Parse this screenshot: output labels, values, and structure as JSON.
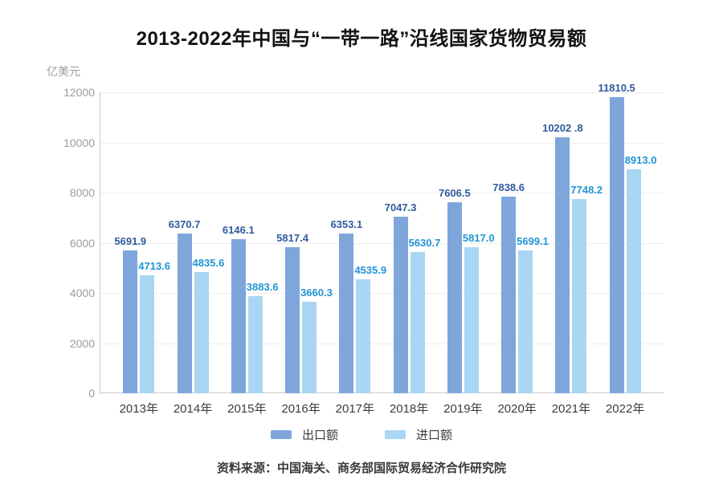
{
  "title": "2013-2022年中国与“一带一路”沿线国家货物贸易额",
  "y_unit": "亿美元",
  "source": "资料来源：中国海关、商务部国际贸易经济合作研究院",
  "colors": {
    "export_bar": "#7ea6db",
    "import_bar": "#a9d6f3",
    "export_label": "#2f5b9d",
    "import_label": "#2295d5",
    "axis": "#c8c8c8",
    "gridline": "#dcdcdc",
    "tick_text": "#9c9c9c"
  },
  "chart_data": {
    "type": "bar",
    "title": "2013-2022年中国与“一带一路”沿线国家货物贸易额",
    "ylabel": "亿美元",
    "xlabel": "",
    "categories": [
      "2013年",
      "2014年",
      "2015年",
      "2016年",
      "2017年",
      "2018年",
      "2019年",
      "2020年",
      "2021年",
      "2022年"
    ],
    "series": [
      {
        "name": "出口额",
        "color": "#7ea6db",
        "label_color": "#2f5b9d",
        "values": [
          5691.9,
          6370.7,
          6146.1,
          5817.4,
          6353.1,
          7047.3,
          7606.5,
          7838.6,
          10202.8,
          11810.5
        ],
        "labels": [
          "5691.9",
          "6370.7",
          "6146.1",
          "5817.4",
          "6353.1",
          "7047.3",
          "7606.5",
          "7838.6",
          "10202 .8",
          "11810.5"
        ]
      },
      {
        "name": "进口额",
        "color": "#a9d6f3",
        "label_color": "#2295d5",
        "values": [
          4713.6,
          4835.6,
          3883.6,
          3660.3,
          4535.9,
          5630.7,
          5817.0,
          5699.1,
          7748.2,
          8913.0
        ],
        "labels": [
          "4713.6",
          "4835.6",
          "3883.6",
          "3660.3",
          "4535.9",
          "5630.7",
          "5817.0",
          "5699.1",
          "7748.2",
          "8913.0"
        ]
      }
    ],
    "ylim": [
      0,
      12000
    ],
    "yticks": [
      0,
      2000,
      4000,
      6000,
      8000,
      10000,
      12000
    ],
    "grid": true,
    "gridline_style": "dotted",
    "legend_position": "bottom"
  }
}
